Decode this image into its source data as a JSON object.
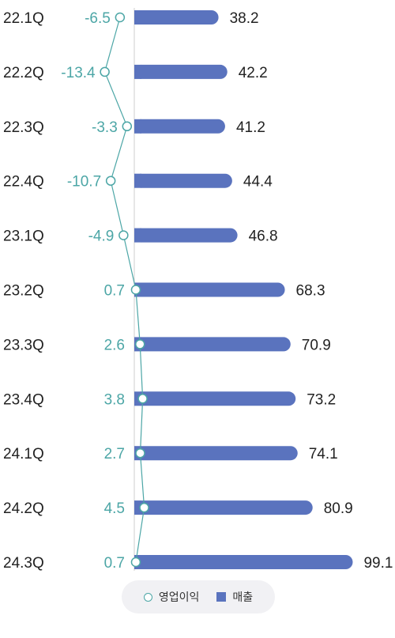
{
  "chart_data": {
    "type": "bar",
    "categories": [
      "22.1Q",
      "22.2Q",
      "22.3Q",
      "22.4Q",
      "23.1Q",
      "23.2Q",
      "23.3Q",
      "23.4Q",
      "24.1Q",
      "24.2Q",
      "24.3Q"
    ],
    "series": [
      {
        "name": "매출",
        "values": [
          38.2,
          42.2,
          41.2,
          44.4,
          46.8,
          68.3,
          70.9,
          73.2,
          74.1,
          80.9,
          99.1
        ],
        "color": "#5a73be",
        "mark": "bar"
      },
      {
        "name": "영업이익",
        "values": [
          -6.5,
          -13.4,
          -3.3,
          -10.7,
          -4.9,
          0.7,
          2.6,
          3.8,
          2.7,
          4.5,
          0.7
        ],
        "color": "#4ca6a6",
        "mark": "line"
      }
    ],
    "value_labels": {
      "revenue": [
        "38.2",
        "42.2",
        "41.2",
        "44.4",
        "46.8",
        "68.3",
        "70.9",
        "73.2",
        "74.1",
        "80.9",
        "99.1"
      ],
      "operating_profit": [
        "-6.5",
        "-13.4",
        "-3.3",
        "-10.7",
        "-4.9",
        "0.7",
        "2.6",
        "3.8",
        "2.7",
        "4.5",
        "0.7"
      ]
    },
    "orientation": "horizontal",
    "grid": false,
    "legend_position": "bottom-center"
  },
  "legend": {
    "items": [
      {
        "label": "영업이익",
        "marker": "circle"
      },
      {
        "label": "매출",
        "marker": "square"
      }
    ]
  }
}
